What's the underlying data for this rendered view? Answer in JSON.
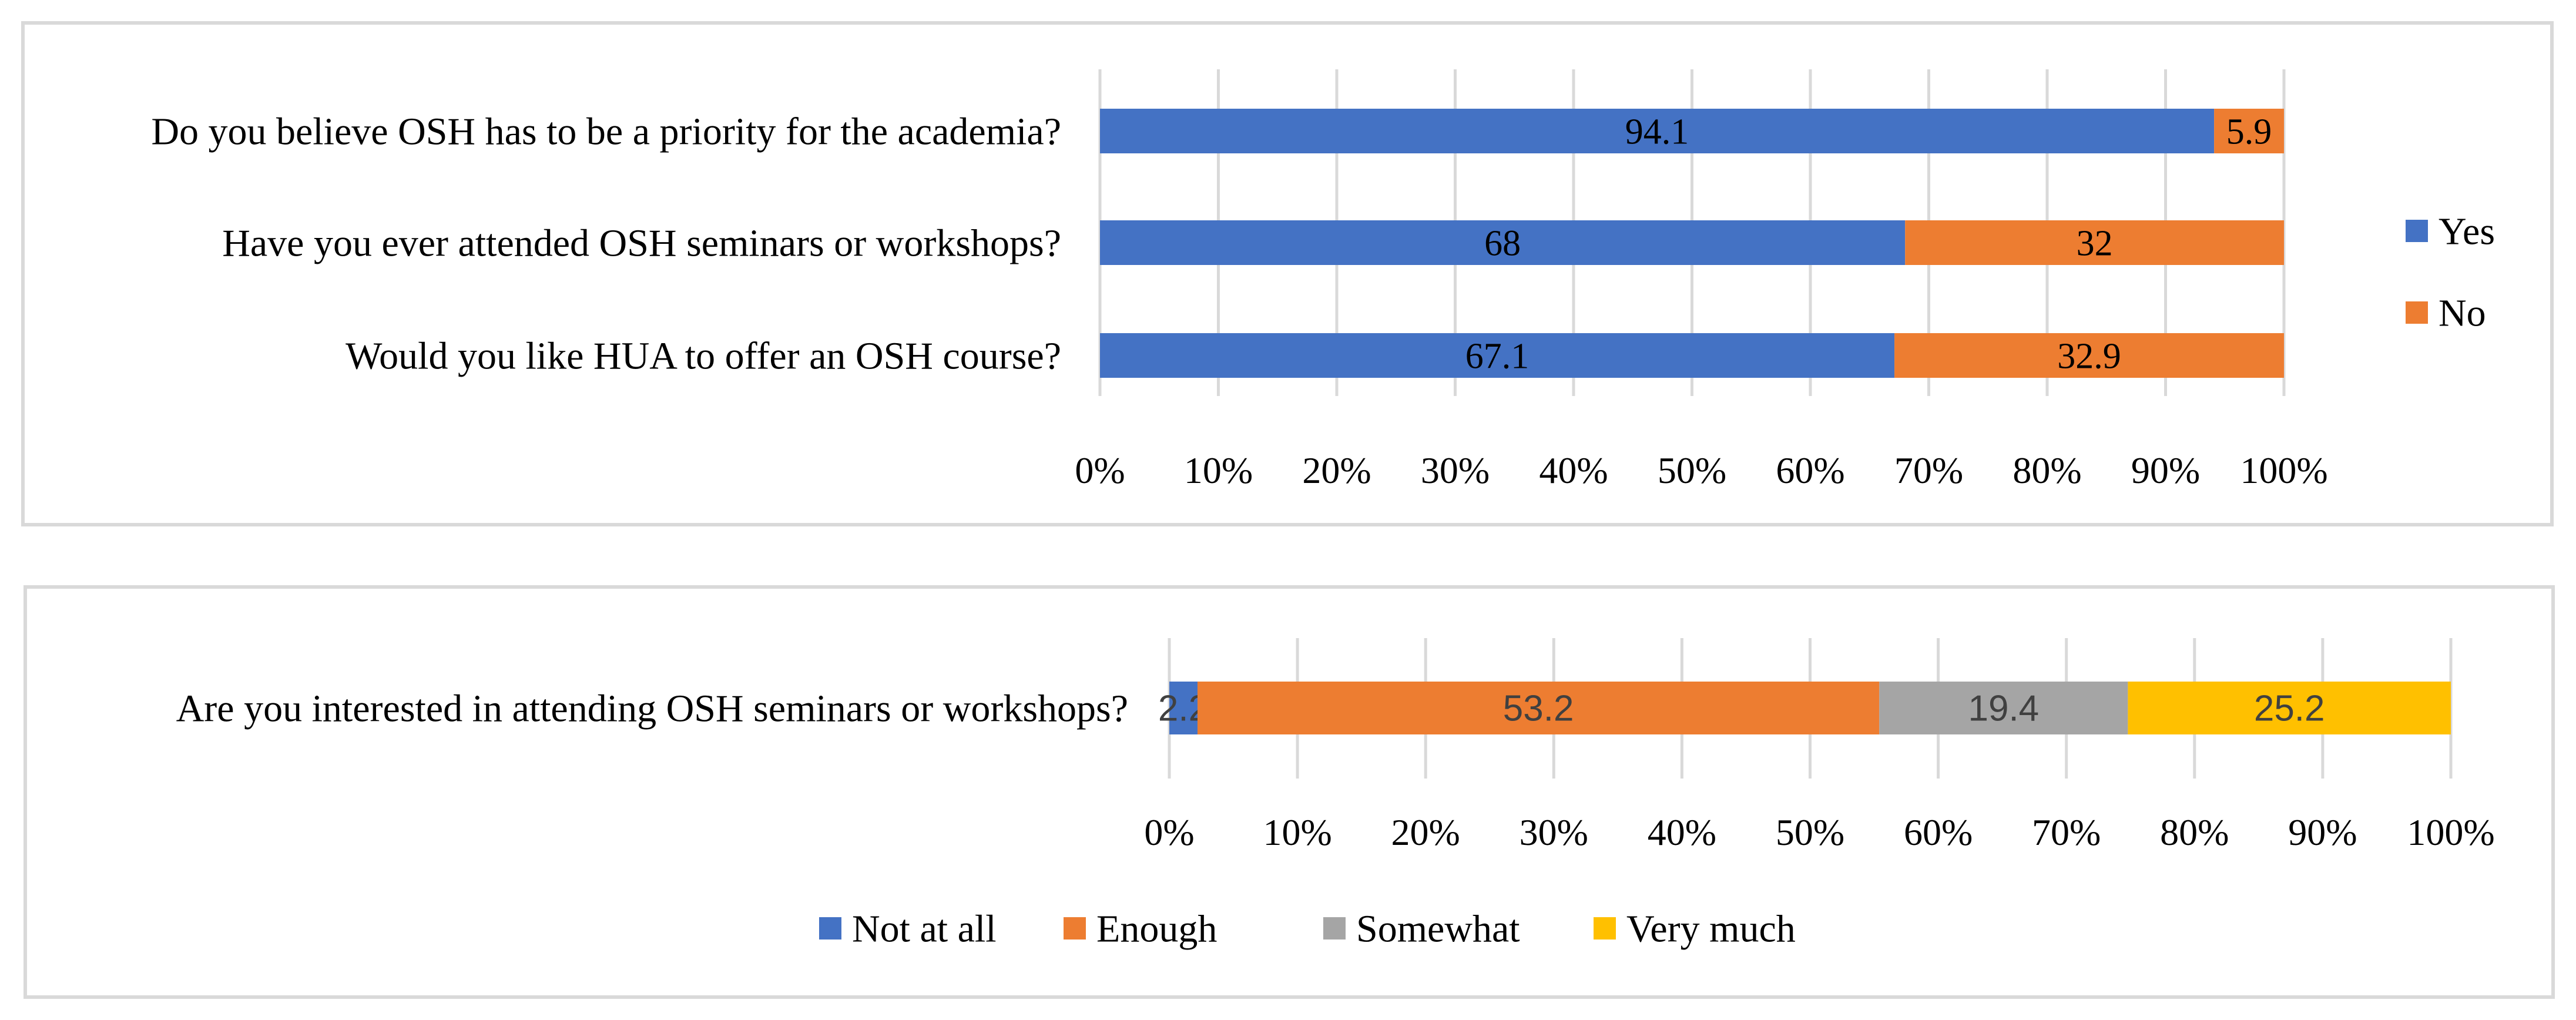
{
  "chart_data": [
    {
      "type": "bar",
      "orientation": "horizontal",
      "stacked": "100%",
      "title": "",
      "categories": [
        "Do you believe OSH has to be a priority for the academia?",
        "Have you ever attended OSH seminars or workshops?",
        "Would you like HUA to offer an OSH course?"
      ],
      "series": [
        {
          "name": "Yes",
          "color": "#4472C4",
          "values": [
            94.1,
            68,
            67.1
          ],
          "labels": [
            "94.1",
            "68",
            "67.1"
          ]
        },
        {
          "name": "No",
          "color": "#ED7D31",
          "values": [
            5.9,
            32,
            32.9
          ],
          "labels": [
            "5.9",
            "32",
            "32.9"
          ]
        }
      ],
      "xlim": [
        0,
        100
      ],
      "xticks": [
        "0%",
        "10%",
        "20%",
        "30%",
        "40%",
        "50%",
        "60%",
        "70%",
        "80%",
        "90%",
        "100%"
      ],
      "grid": true,
      "legend": "right"
    },
    {
      "type": "bar",
      "orientation": "horizontal",
      "stacked": "100%",
      "title": "",
      "categories": [
        "Are you interested in attending OSH seminars or workshops?"
      ],
      "series": [
        {
          "name": "Not at all",
          "color": "#4472C4",
          "values": [
            2.2
          ],
          "labels": [
            "2.2"
          ]
        },
        {
          "name": "Enough",
          "color": "#ED7D31",
          "values": [
            53.2
          ],
          "labels": [
            "53.2"
          ]
        },
        {
          "name": "Somewhat",
          "color": "#A5A5A5",
          "values": [
            19.4
          ],
          "labels": [
            "19.4"
          ]
        },
        {
          "name": "Very much",
          "color": "#FFC000",
          "values": [
            25.2
          ],
          "labels": [
            "25.2"
          ]
        }
      ],
      "xlim": [
        0,
        100
      ],
      "xticks": [
        "0%",
        "10%",
        "20%",
        "30%",
        "40%",
        "50%",
        "60%",
        "70%",
        "80%",
        "90%",
        "100%"
      ],
      "grid": true,
      "legend": "bottom"
    }
  ]
}
